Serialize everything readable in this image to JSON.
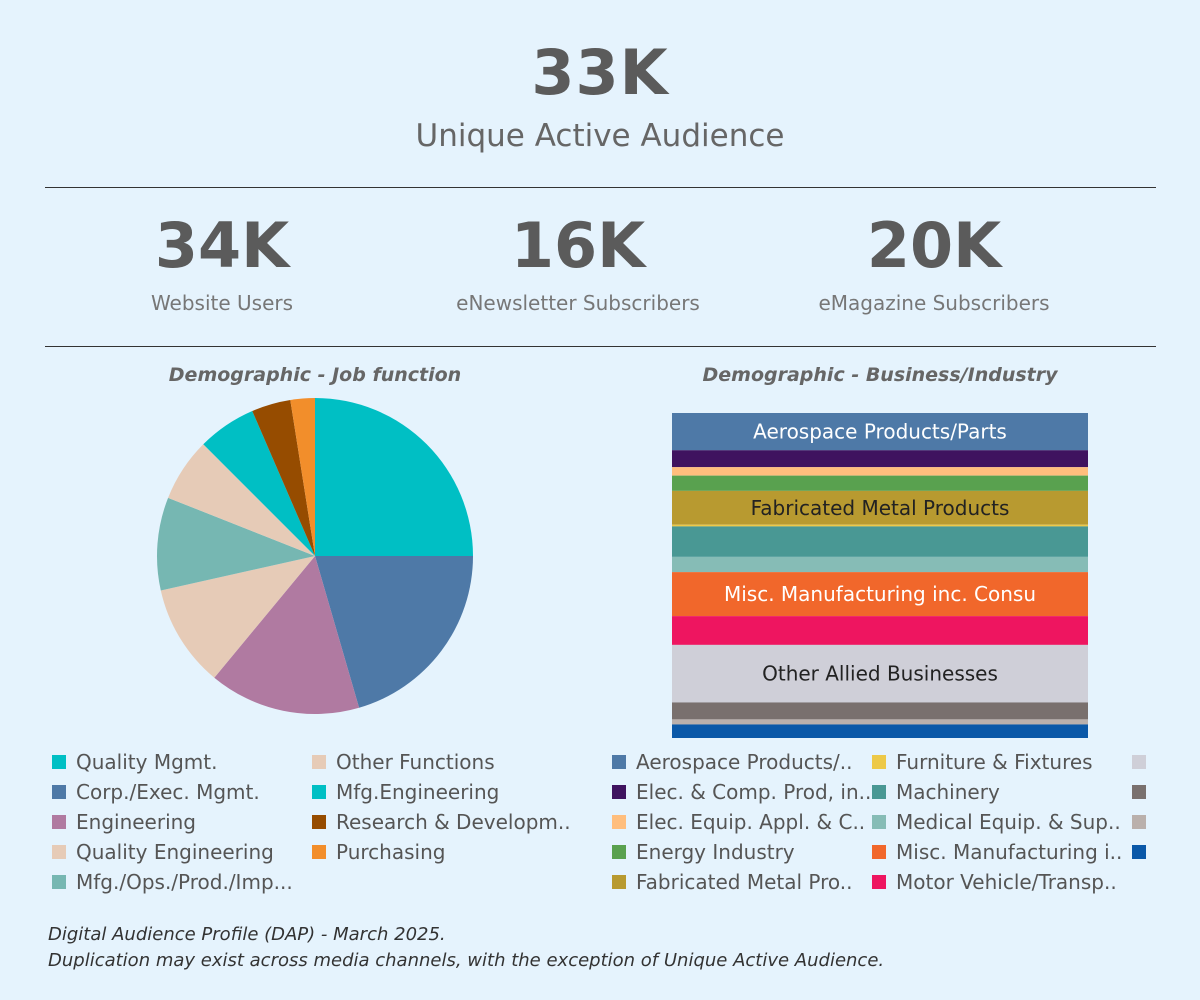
{
  "header": {
    "value": "33K",
    "label": "Unique Active Audience"
  },
  "kpis": [
    {
      "value": "34K",
      "label": "Website Users"
    },
    {
      "value": "16K",
      "label": "eNewsletter Subscribers"
    },
    {
      "value": "20K",
      "label": "eMagazine Subscribers"
    }
  ],
  "chart_data": [
    {
      "type": "pie",
      "title": "Demographic - Job function",
      "slices": [
        {
          "label": "Quality Mgmt.",
          "value": 25.0,
          "color": "#00bfc4"
        },
        {
          "label": "Corp./Exec. Mgmt.",
          "value": 20.5,
          "color": "#4e79a7"
        },
        {
          "label": "Engineering",
          "value": 15.5,
          "color": "#b07aa1"
        },
        {
          "label": "Quality Engineering",
          "value": 10.5,
          "color": "#e6cbb7"
        },
        {
          "label": "Mfg./Ops./Prod./Imp...",
          "value": 9.5,
          "color": "#76b7b2"
        },
        {
          "label": "Other Functions",
          "value": 6.5,
          "color": "#e6cbb7"
        },
        {
          "label": "Mfg.Engineering",
          "value": 6.0,
          "color": "#00bfc4"
        },
        {
          "label": "Research & Developm..",
          "value": 4.0,
          "color": "#964c00"
        },
        {
          "label": "Purchasing",
          "value": 2.5,
          "color": "#f28e2b"
        }
      ]
    },
    {
      "type": "bar",
      "stacked": true,
      "title": "Demographic - Business/Industry",
      "segments": [
        {
          "label": "Aerospace Products/..",
          "value": 11.0,
          "color": "#4e79a7",
          "text": "Aerospace Products/Parts"
        },
        {
          "label": "Elec. & Comp. Prod, in..",
          "value": 5.0,
          "color": "#3f135f",
          "text": ""
        },
        {
          "label": "Elec. Equip. Appl. & C..",
          "value": 2.5,
          "color": "#ffbe7d",
          "text": ""
        },
        {
          "label": "Energy Industry",
          "value": 4.5,
          "color": "#59a14f",
          "text": ""
        },
        {
          "label": "Fabricated Metal Pro..",
          "value": 10.0,
          "color": "#b89a30",
          "text": "Fabricated Metal Products"
        },
        {
          "label": "Furniture & Fixtures",
          "value": 0.5,
          "color": "#edc948",
          "text": ""
        },
        {
          "label": "Machinery",
          "value": 9.0,
          "color": "#499894",
          "text": ""
        },
        {
          "label": "Medical Equip. & Sup..",
          "value": 4.5,
          "color": "#86bcb6",
          "text": ""
        },
        {
          "label": "Misc. Manufacturing i..",
          "value": 13.0,
          "color": "#f1672b",
          "text": "Misc. Manufacturing inc. Consu"
        },
        {
          "label": "Motor Vehicle/Transp..",
          "value": 8.5,
          "color": "#ee1560",
          "text": ""
        },
        {
          "label": "",
          "value": 17.0,
          "color": "#cfcfd8",
          "text": "Other Allied Businesses"
        },
        {
          "label": "",
          "value": 5.0,
          "color": "#79706e",
          "text": ""
        },
        {
          "label": "",
          "value": 1.5,
          "color": "#bab0ac",
          "text": ""
        },
        {
          "label": "",
          "value": 4.0,
          "color": "#0a58a8",
          "text": ""
        }
      ]
    }
  ],
  "footnote": {
    "line1": "Digital Audience Profile (DAP) - March 2025.",
    "line2": "Duplication may exist across media channels, with the exception of Unique Active Audience."
  }
}
